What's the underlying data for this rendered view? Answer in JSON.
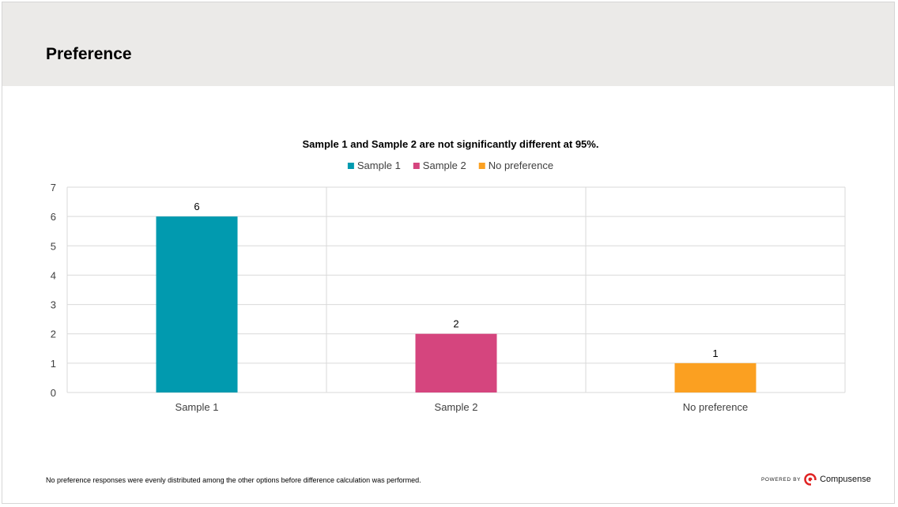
{
  "header": {
    "title": "Preference"
  },
  "chart_data": {
    "type": "bar",
    "title": "Sample 1 and Sample 2 are not significantly different at 95%.",
    "categories": [
      "Sample 1",
      "Sample 2",
      "No preference"
    ],
    "values": [
      6,
      2,
      1
    ],
    "data_labels": [
      "6",
      "2",
      "1"
    ],
    "colors": [
      "#019aaf",
      "#d5457e",
      "#fba021"
    ],
    "legend": [
      "Sample 1",
      "Sample 2",
      "No preference"
    ],
    "legend_position": "top",
    "ylim": [
      0,
      7
    ],
    "yticks": [
      "0",
      "1",
      "2",
      "3",
      "4",
      "5",
      "6",
      "7"
    ],
    "grid": true
  },
  "footer": {
    "note": "No preference responses were evenly distributed among the other options before difference calculation was performed.",
    "powered_by": "POWERED BY",
    "brand": "Compusense",
    "brand_color": "#e02424"
  }
}
